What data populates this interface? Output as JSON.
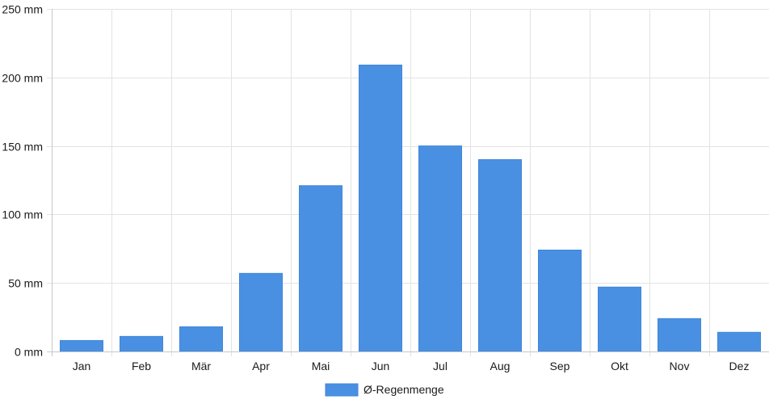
{
  "chart_data": {
    "type": "bar",
    "categories": [
      "Jan",
      "Feb",
      "Mär",
      "Apr",
      "Mai",
      "Jun",
      "Jul",
      "Aug",
      "Sep",
      "Okt",
      "Nov",
      "Dez"
    ],
    "series": [
      {
        "name": "Ø-Regenmenge",
        "values": [
          8,
          11,
          18,
          57,
          121,
          209,
          150,
          140,
          74,
          47,
          24,
          14
        ],
        "color": "#4a90e2"
      }
    ],
    "ylim": [
      0,
      250
    ],
    "yticks": [
      0,
      50,
      100,
      150,
      200,
      250
    ],
    "y_tick_unit": "mm",
    "grid": true,
    "legend_position": "bottom-center",
    "colors": {
      "bar": "#4a90e2",
      "bar_border": "#3f86d9",
      "grid": "#e3e3e3",
      "axis": "#c8c8c8",
      "text": "#1a1a1a"
    }
  }
}
